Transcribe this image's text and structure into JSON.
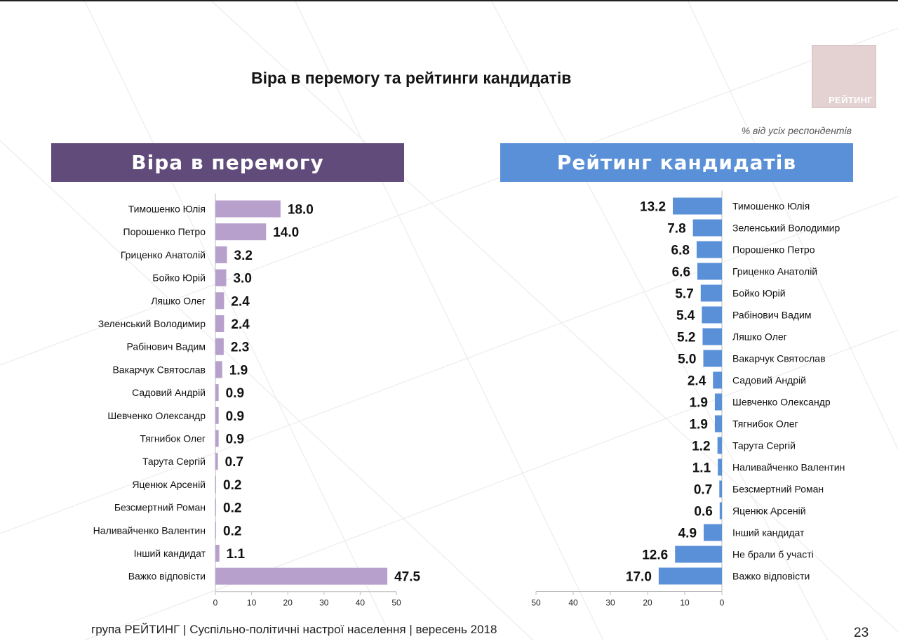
{
  "slide": {
    "title": "Віра в перемогу та рейтинги кандидатів",
    "logo_text": "РЕЙТИНГ",
    "unit_note": "% від усіх респондентів",
    "footer": "група РЕЙТИНГ |  Суспільно-політичні настрої населення | вересень  2018",
    "page_number": "23"
  },
  "colors": {
    "left_header": "#614b7b",
    "left_bar": "#b7a1cc",
    "right_header": "#5a90d7",
    "right_bar": "#5a90d7"
  },
  "chart_data": [
    {
      "type": "bar",
      "orientation": "horizontal",
      "title": "Віра в перемогу",
      "categories": [
        "Тимошенко Юлія",
        "Порошенко Петро",
        "Гриценко Анатолій",
        "Бойко Юрій",
        "Ляшко Олег",
        "Зеленський Володимир",
        "Рабінович Вадим",
        "Вакарчук Святослав",
        "Садовий Андрій",
        "Шевченко Олександр",
        "Тягнибок Олег",
        "Тарута Сергій",
        "Яценюк Арсеній",
        "Безсмертний Роман",
        "Наливайченко Валентин",
        "Інший кандидат",
        "Важко відповісти"
      ],
      "values": [
        18.0,
        14.0,
        3.2,
        3.0,
        2.4,
        2.4,
        2.3,
        1.9,
        0.9,
        0.9,
        0.9,
        0.7,
        0.2,
        0.2,
        0.2,
        1.1,
        47.5
      ],
      "xlim": [
        0,
        50
      ],
      "ticks": [
        0,
        10,
        20,
        30,
        40,
        50
      ]
    },
    {
      "type": "bar",
      "orientation": "horizontal",
      "direction": "reversed",
      "title": "Рейтинг кандидатів",
      "categories": [
        "Тимошенко Юлія",
        "Зеленський Володимир",
        "Порошенко Петро",
        "Гриценко Анатолій",
        "Бойко Юрій",
        "Рабінович Вадим",
        "Ляшко Олег",
        "Вакарчук Святослав",
        "Садовий Андрій",
        "Шевченко Олександр",
        "Тягнибок Олег",
        "Тарута Сергій",
        "Наливайченко Валентин",
        "Безсмертний Роман",
        "Яценюк Арсеній",
        "Інший кандидат",
        "Не брали б участі",
        "Важко відповісти"
      ],
      "values": [
        13.2,
        7.8,
        6.8,
        6.6,
        5.7,
        5.4,
        5.2,
        5.0,
        2.4,
        1.9,
        1.9,
        1.2,
        1.1,
        0.7,
        0.6,
        4.9,
        12.6,
        17.0
      ],
      "xlim": [
        0,
        50
      ],
      "ticks": [
        50,
        40,
        30,
        20,
        10,
        0
      ]
    }
  ]
}
